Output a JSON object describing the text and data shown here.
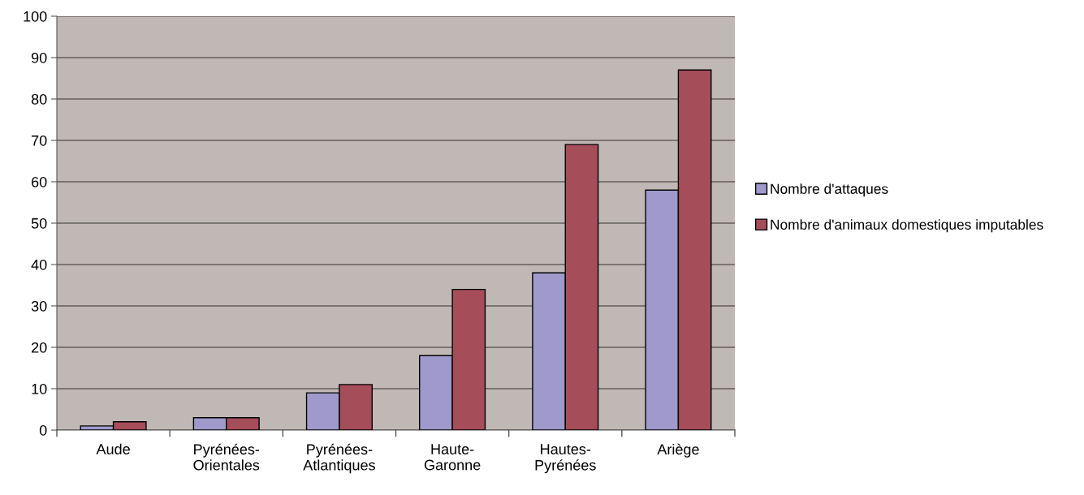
{
  "chart_data": {
    "type": "bar",
    "categories": [
      "Aude",
      "Pyrénées-Orientales",
      "Pyrénées-Atlantiques",
      "Haute-Garonne",
      "Hautes-Pyrénées",
      "Ariège"
    ],
    "series": [
      {
        "name": "Nombre d'attaques",
        "color": "#9f99cc",
        "values": [
          1,
          3,
          9,
          18,
          38,
          58
        ]
      },
      {
        "name": "Nombre d'animaux domestiques imputables",
        "color": "#a64d5a",
        "values": [
          2,
          3,
          11,
          34,
          69,
          87
        ]
      }
    ],
    "ylim": [
      0,
      100
    ],
    "yticks": [
      0,
      10,
      20,
      30,
      40,
      50,
      60,
      70,
      80,
      90,
      100
    ],
    "grid": "y",
    "legend": "right"
  }
}
